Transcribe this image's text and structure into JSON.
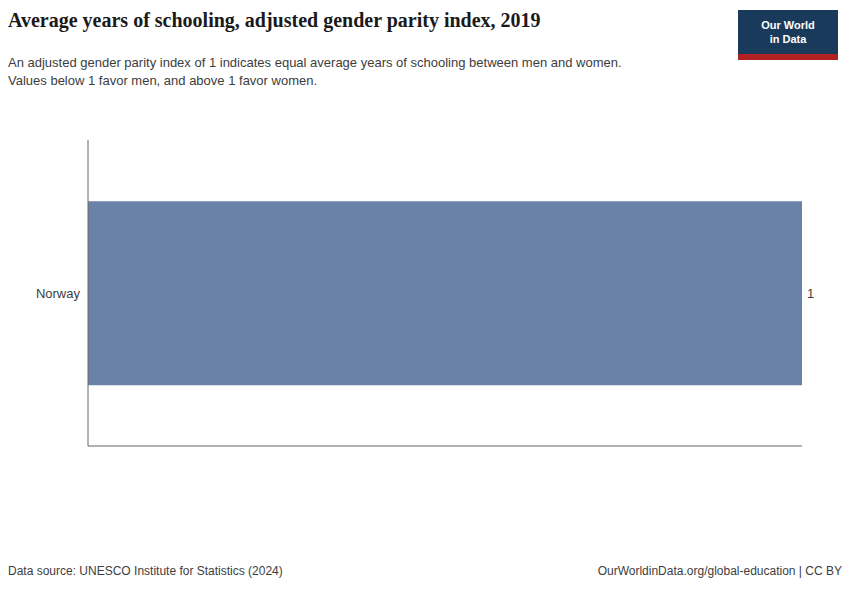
{
  "chart_data": {
    "type": "bar",
    "orientation": "horizontal",
    "title": "Average years of schooling, adjusted gender parity index, 2019",
    "subtitle": [
      "An adjusted gender parity index of 1 indicates equal average years of schooling between men and women.",
      "Values below 1 favor men, and above 1 favor women."
    ],
    "categories": [
      "Norway"
    ],
    "values": [
      1.0
    ],
    "color": "#6b82a8",
    "xlim": [
      0,
      1.0
    ],
    "grid": false,
    "data_labels": true,
    "tick_labels": "y",
    "annotations": [
      "Data source: UNESCO Institute for Statistics (2024)",
      "OurWorldinData.org/global-education | CC BY",
      "Our World",
      "in Data"
    ]
  }
}
